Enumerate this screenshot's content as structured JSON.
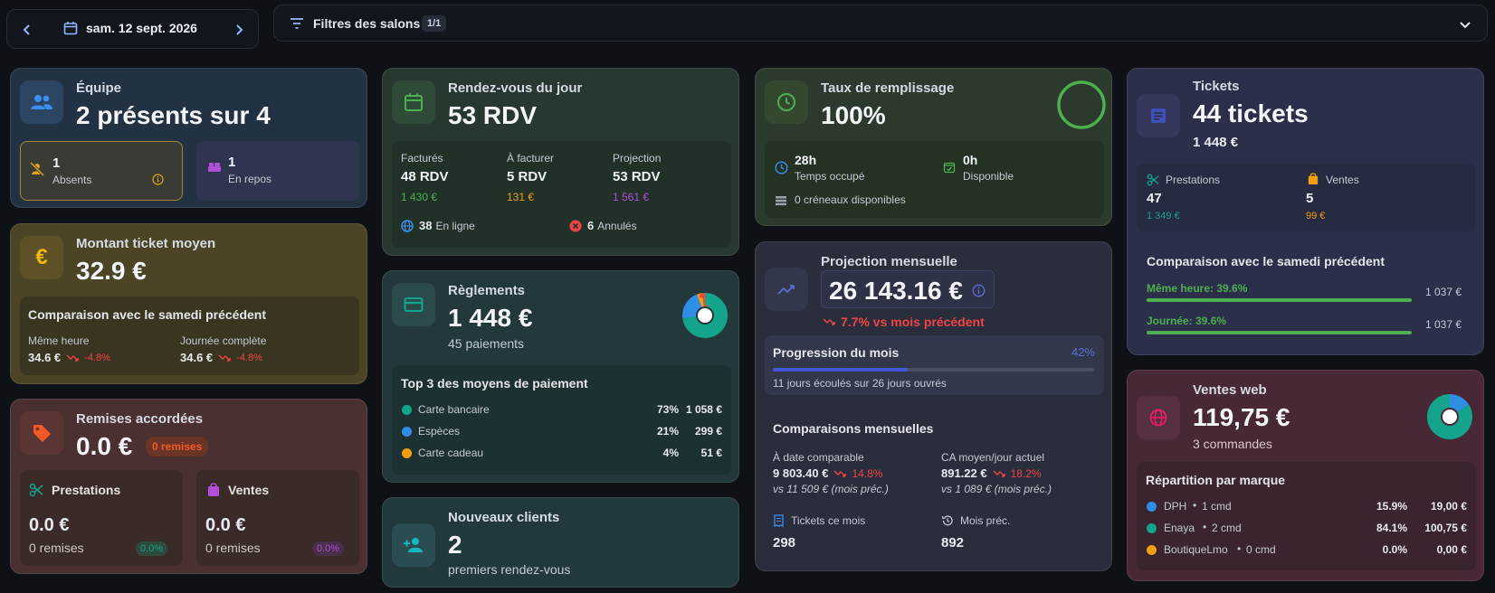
{
  "nav": {
    "date": "sam. 12 sept. 2026",
    "filter_label": "Filtres des salons",
    "filter_count": "1/1"
  },
  "equipe": {
    "title": "Équipe",
    "big": "2 présents sur 4",
    "absents_count": "1",
    "absents_label": "Absents",
    "repos_count": "1",
    "repos_label": "En repos"
  },
  "ticket_moyen": {
    "title": "Montant ticket moyen",
    "big": "32.9 €",
    "comp_title": "Comparaison avec le samedi précédent",
    "meme_heure_label": "Même heure",
    "meme_heure_val": "34.6 €",
    "meme_heure_delta": "-4.8%",
    "journee_label": "Journée complète",
    "journee_val": "34.6 €",
    "journee_delta": "-4.8%"
  },
  "remises": {
    "title": "Remises accordées",
    "big": "0.0 €",
    "badge": "0 remises",
    "prest_title": "Prestations",
    "prest_val": "0.0 €",
    "prest_sub": "0 remises",
    "prest_pct": "0.0%",
    "ventes_title": "Ventes",
    "ventes_val": "0.0 €",
    "ventes_sub": "0 remises",
    "ventes_pct": "0.0%"
  },
  "rdv": {
    "title": "Rendez-vous du jour",
    "big": "53 RDV",
    "cols": [
      {
        "label": "Facturés",
        "val": "48 RDV",
        "amount": "1 430 €"
      },
      {
        "label": "À facturer",
        "val": "5 RDV",
        "amount": "131 €"
      },
      {
        "label": "Projection",
        "val": "53 RDV",
        "amount": "1 561 €"
      }
    ],
    "online_count": "38",
    "online_label": "En ligne",
    "cancel_count": "6",
    "cancel_label": "Annulés"
  },
  "reglements": {
    "title": "Règlements",
    "big": "1 448 €",
    "sub": "45 paiements",
    "top_title": "Top 3 des moyens de paiement",
    "methods": [
      {
        "name": "Carte bancaire",
        "pct": "73%",
        "amount": "1 058 €",
        "color": "#14a38b"
      },
      {
        "name": "Espèces",
        "pct": "21%",
        "amount": "299 €",
        "color": "#2f8fe6"
      },
      {
        "name": "Carte cadeau",
        "pct": "4%",
        "amount": "51 €",
        "color": "#f59e0b"
      }
    ],
    "shares": [
      73,
      21,
      4
    ]
  },
  "nouveaux": {
    "title": "Nouveaux clients",
    "big": "2",
    "sub": "premiers rendez-vous"
  },
  "remplissage": {
    "title": "Taux de remplissage",
    "big": "100%",
    "occupe_val": "28h",
    "occupe_label": "Temps occupé",
    "dispo_val": "0h",
    "dispo_label": "Disponible",
    "creneaux": "0 créneaux disponibles"
  },
  "projection": {
    "title": "Projection mensuelle",
    "big": "26 143.16 €",
    "delta": "7.7% vs mois précédent",
    "progress_title": "Progression du mois",
    "progress_pct_label": "42%",
    "progress": 0.42,
    "progress_sub": "11 jours écoulés sur 26 jours ouvrés",
    "comp_title": "Comparaisons mensuelles",
    "a_date_label": "À date comparable",
    "a_date_val": "9 803.40 €",
    "a_date_delta": "14.8%",
    "a_date_prev": "vs 11 509 € (mois préc.)",
    "ca_label": "CA moyen/jour actuel",
    "ca_val": "891.22 €",
    "ca_delta": "18.2%",
    "ca_prev": "vs 1 089 € (mois préc.)",
    "tickets_label": "Tickets ce mois",
    "tickets_val": "298",
    "mois_label": "Mois préc.",
    "mois_val": "892"
  },
  "tickets": {
    "title": "Tickets",
    "big": "44 tickets",
    "amount": "1 448 €",
    "prest_label": "Prestations",
    "prest_count": "47",
    "prest_amount": "1 349 €",
    "ventes_label": "Ventes",
    "ventes_count": "5",
    "ventes_amount": "99 €",
    "comp_title": "Comparaison avec le samedi précédent",
    "meme_label": "Même heure: 39.6%",
    "meme_val": "1 037 €",
    "journee_label": "Journée: 39.6%",
    "journee_val": "1 037 €"
  },
  "web": {
    "title": "Ventes web",
    "big": "119,75 €",
    "sub": "3 commandes",
    "rep_title": "Répartition par marque",
    "brands": [
      {
        "name": "DPH",
        "cmd": "1 cmd",
        "pct": "15.9%",
        "amount": "19,00 €",
        "color": "#2f8fe6"
      },
      {
        "name": "Enaya",
        "cmd": "2 cmd",
        "pct": "84.1%",
        "amount": "100,75 €",
        "color": "#14a38b"
      },
      {
        "name": "BoutiqueLmo",
        "cmd": "0 cmd",
        "pct": "0.0%",
        "amount": "0,00 €",
        "color": "#f59e0b"
      }
    ],
    "shares": [
      15.9,
      84.1,
      0
    ]
  }
}
